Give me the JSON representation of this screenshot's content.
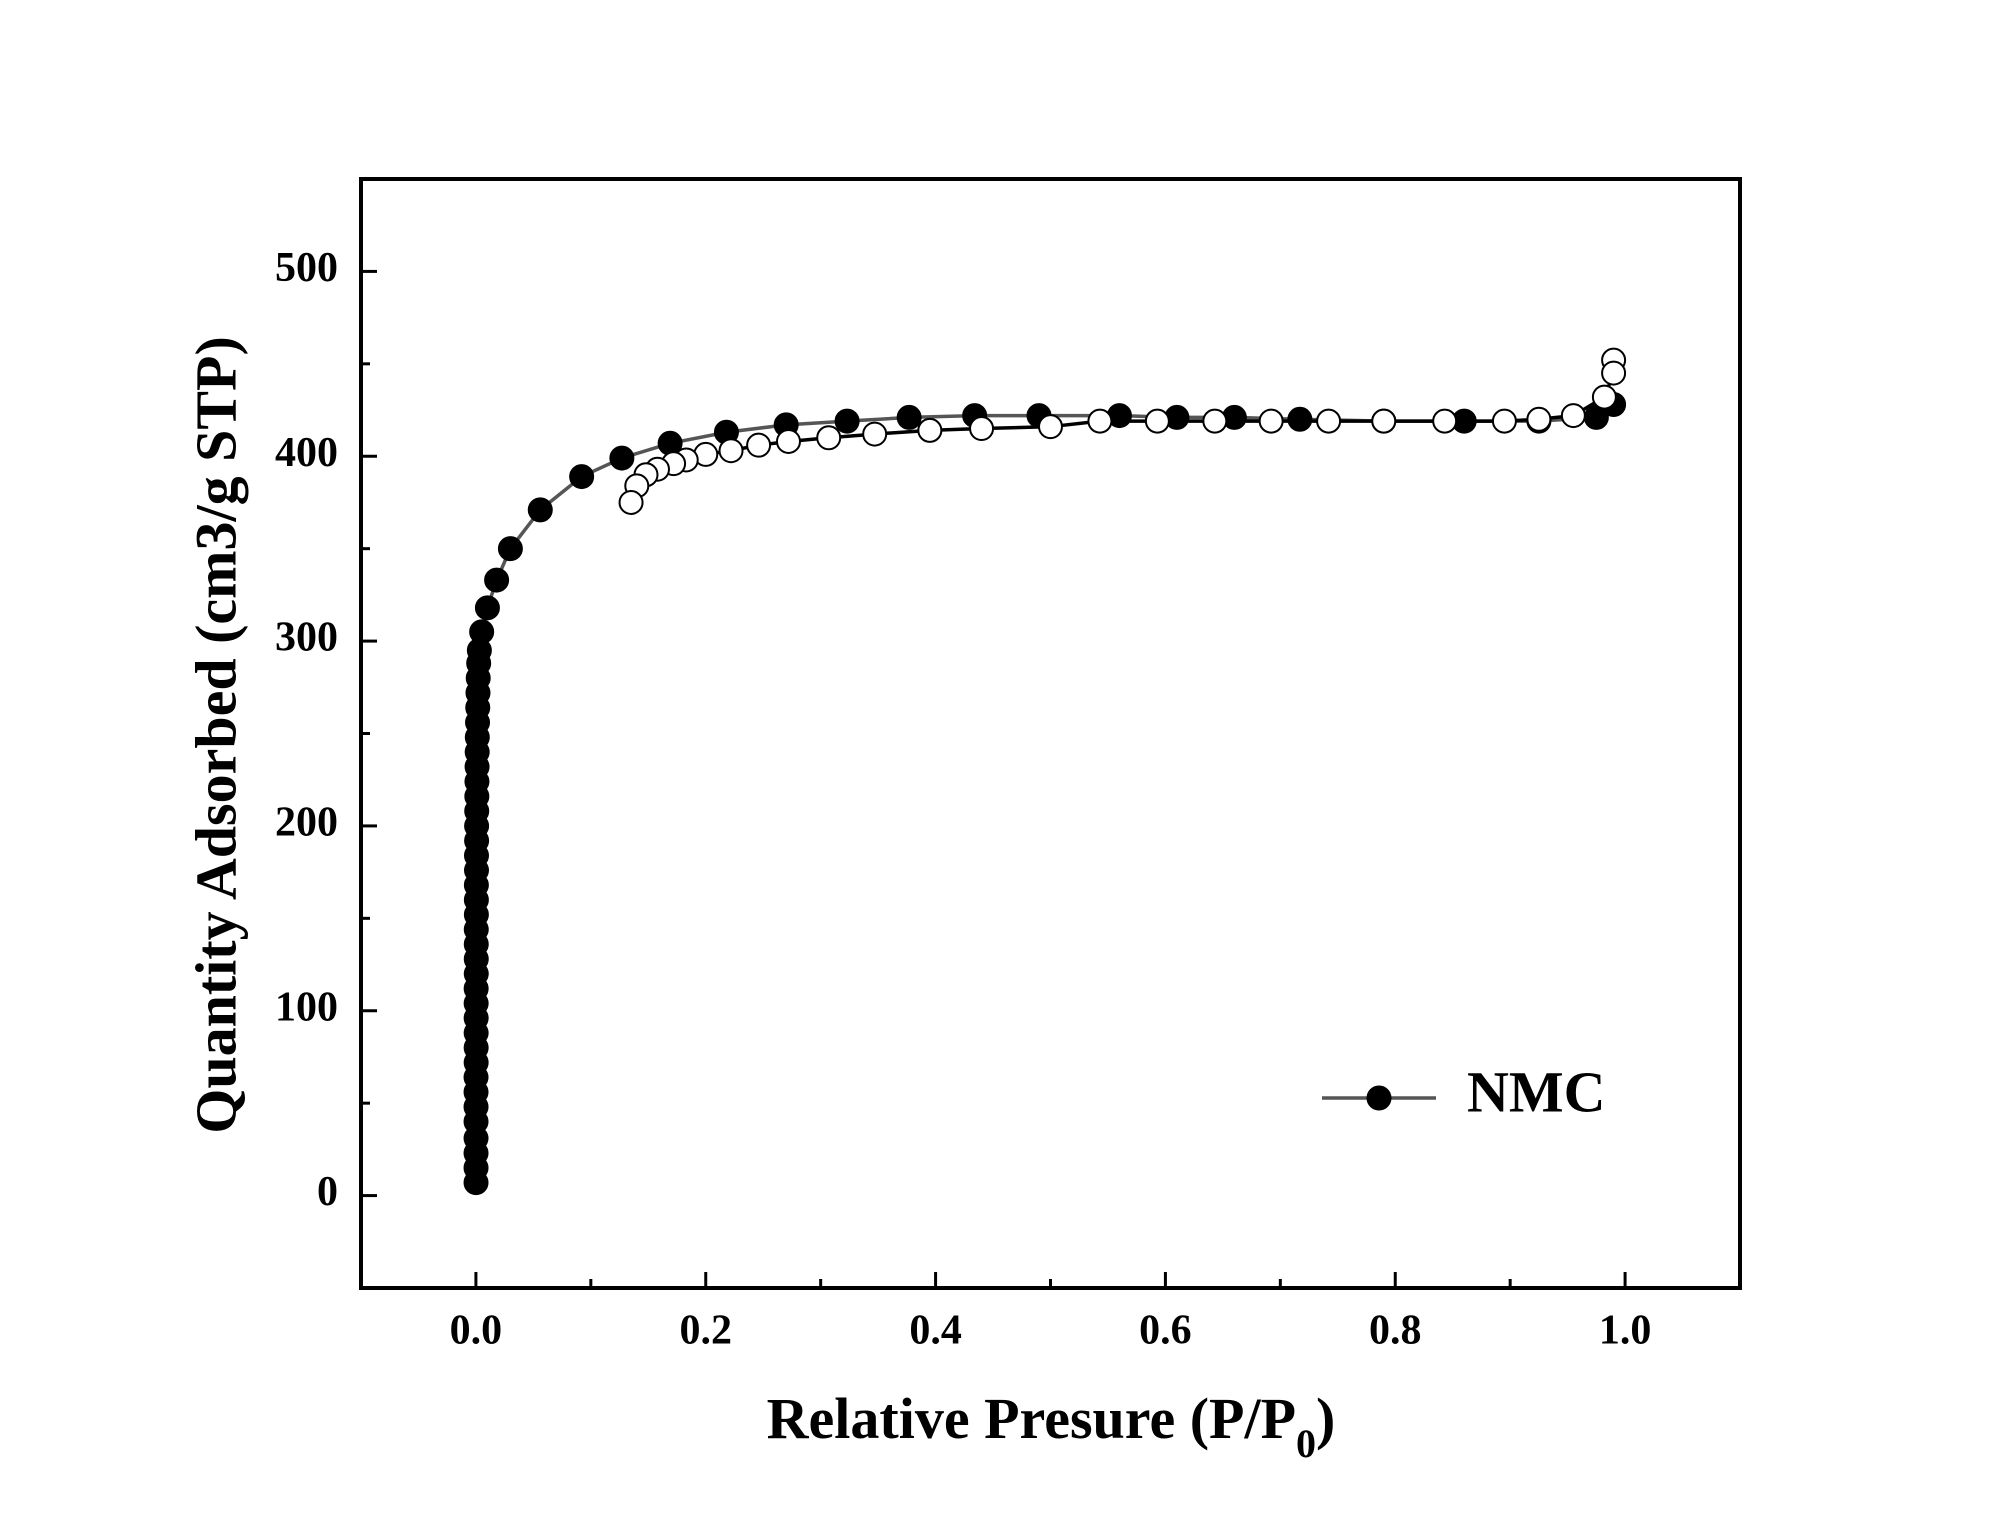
{
  "chart_data": {
    "type": "line",
    "x_label": [
      "Relative Presure (P/P",
      "0",
      ")"
    ],
    "y_label": "Quantity Adsorbed (cm3/g STP)",
    "xlim": [
      -0.1,
      1.1
    ],
    "ylim": [
      -50,
      550
    ],
    "xticks": [
      {
        "value": 0,
        "label": "0.0"
      },
      {
        "value": 0.2,
        "label": "0.2"
      },
      {
        "value": 0.4,
        "label": "0.4"
      },
      {
        "value": 0.6,
        "label": "0.6"
      },
      {
        "value": 0.8,
        "label": "0.8"
      },
      {
        "value": 1,
        "label": "1.0"
      }
    ],
    "xticks_minor": [
      0.1,
      0.3,
      0.5,
      0.7,
      0.9
    ],
    "yticks": [
      0,
      100,
      200,
      300,
      400,
      500
    ],
    "yticks_minor": [
      50,
      150,
      250,
      350,
      450
    ],
    "legend": "lower right",
    "series": [
      {
        "name": "NMC",
        "color": "#555555",
        "marker_color": "#000000",
        "marker_fill": "#000000",
        "x": [
          0.0001,
          0.0001,
          0.0001,
          0.0001,
          0.0001,
          0.0001,
          0.0001,
          0.0001,
          0.0002,
          0.0002,
          0.0002,
          0.0002,
          0.0002,
          0.0002,
          0.0003,
          0.0003,
          0.0003,
          0.0003,
          0.0004,
          0.0004,
          0.0004,
          0.0005,
          0.0005,
          0.0006,
          0.0006,
          0.0007,
          0.0008,
          0.0009,
          0.001,
          0.0011,
          0.0012,
          0.0014,
          0.0016,
          0.0018,
          0.002,
          0.0024,
          0.003,
          0.005,
          0.01,
          0.018,
          0.03,
          0.056,
          0.092,
          0.127,
          0.169,
          0.218,
          0.27,
          0.323,
          0.377,
          0.434,
          0.49,
          0.56,
          0.61,
          0.66,
          0.717,
          0.79,
          0.86,
          0.925,
          0.975,
          0.99
        ],
        "values": [
          7,
          15,
          23,
          31,
          40,
          48,
          56,
          64,
          72,
          80,
          88,
          96,
          104,
          112,
          120,
          128,
          136,
          144,
          152,
          160,
          168,
          176,
          184,
          192,
          200,
          208,
          216,
          224,
          232,
          240,
          248,
          256,
          264,
          272,
          280,
          288,
          295,
          305,
          318,
          333,
          350,
          371,
          389,
          399,
          407,
          413,
          417,
          419,
          421,
          422,
          422,
          422,
          421,
          421,
          420,
          419,
          419,
          419,
          421,
          428
        ]
      },
      {
        "color": "#000000",
        "marker_color": "#000000",
        "marker_fill": "#ffffff",
        "x": [
          0.99,
          0.99,
          0.982,
          0.955,
          0.925,
          0.895,
          0.843,
          0.79,
          0.742,
          0.692,
          0.643,
          0.593,
          0.543,
          0.5,
          0.44,
          0.395,
          0.347,
          0.307,
          0.272,
          0.246,
          0.222,
          0.2,
          0.183,
          0.172,
          0.158,
          0.148,
          0.14,
          0.135
        ],
        "values": [
          452,
          445,
          432,
          422,
          420,
          419,
          419,
          419,
          419,
          419,
          419,
          419,
          419,
          416,
          415,
          414,
          412,
          410,
          408,
          406,
          403,
          401,
          398,
          396,
          393,
          390,
          384,
          375
        ]
      }
    ]
  }
}
